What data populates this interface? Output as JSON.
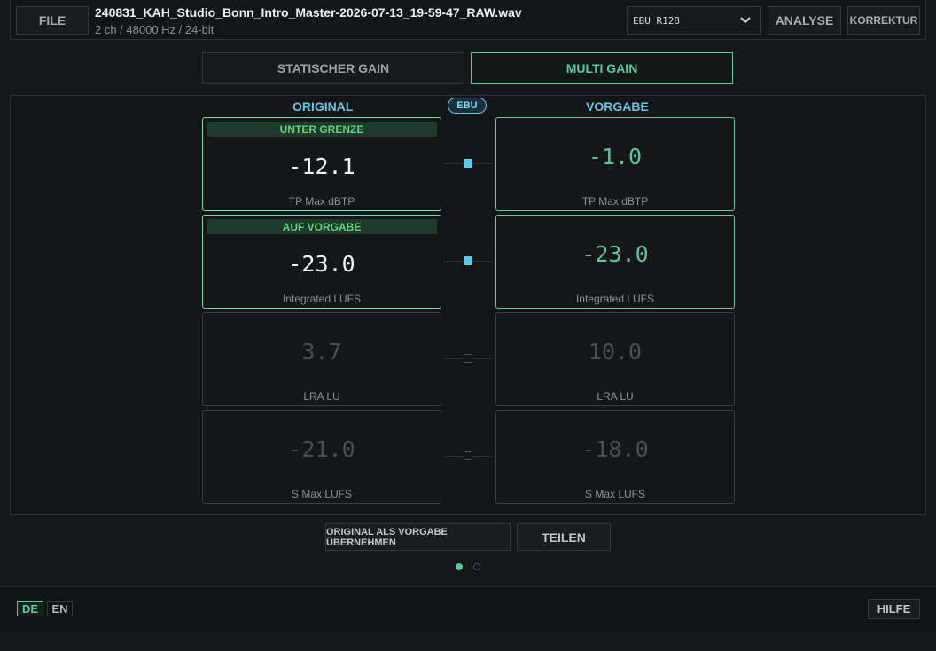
{
  "header": {
    "file_button": "FILE",
    "filename": "240831_KAH_Studio_Bonn_Intro_Master-2026-07-13_19-59-47_RAW.wav",
    "fileinfo": "2 ch / 48000 Hz / 24-bit",
    "preset": {
      "selected": "EBU R128"
    },
    "analyse_button": "ANALYSE",
    "korrektur_button": "KORREKTUR"
  },
  "mode_tabs": [
    {
      "label": "STATISCHER GAIN",
      "active": false
    },
    {
      "label": "MULTI GAIN",
      "active": true
    }
  ],
  "columns": {
    "original": "ORIGINAL",
    "standard_badge": "EBU",
    "target": "VORGABE"
  },
  "rows": [
    {
      "original_value": "-12.1",
      "status": "UNTER GRENZE",
      "target_value": "-1.0",
      "label": "TP Max  dBTP",
      "linked": true
    },
    {
      "original_value": "-23.0",
      "status": "AUF VORGABE",
      "target_value": "-23.0",
      "label": "Integrated  LUFS",
      "linked": true
    },
    {
      "original_value": "3.7",
      "status": "",
      "target_value": "10.0",
      "label": "LRA  LU",
      "linked": false
    },
    {
      "original_value": "-21.0",
      "status": "",
      "target_value": "-18.0",
      "label": "S Max  LUFS",
      "linked": false
    }
  ],
  "actions": {
    "adopt_button": "ORIGINAL ALS VORGABE ÜBERNEHMEN",
    "share_button": "TEILEN"
  },
  "pager": {
    "active_page": 1,
    "total_pages": 2
  },
  "footer": {
    "languages": [
      {
        "code": "DE",
        "active": true
      },
      {
        "code": "EN",
        "active": false
      }
    ],
    "help_button": "HILFE"
  },
  "colors": {
    "accent_green": "#5cc9a0",
    "accent_blue": "#6cc4e0",
    "status_green": "#66d083"
  }
}
